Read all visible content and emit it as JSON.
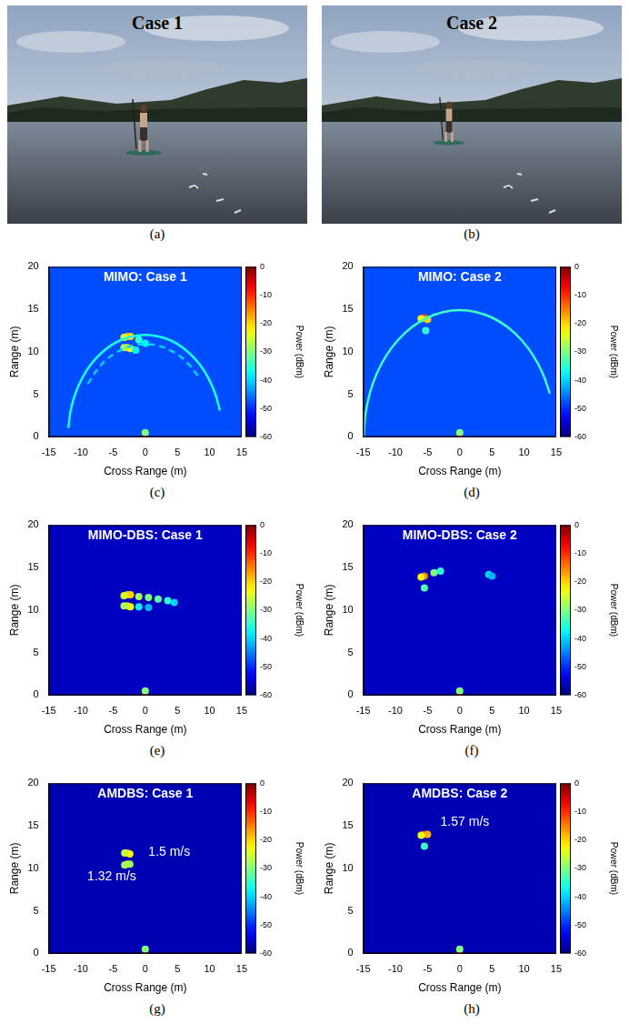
{
  "photos": [
    {
      "label": "(a)",
      "title": "Case 1"
    },
    {
      "label": "(b)",
      "title": "Case 2"
    }
  ],
  "chart_data": [
    {
      "type": "scatter",
      "label": "(c)",
      "title": "MIMO: Case 1",
      "x_label": "Cross Range (m)",
      "y_label": "Range (m)",
      "xlim": [
        -15,
        15
      ],
      "xticks": [
        -15,
        -10,
        -5,
        0,
        5,
        10,
        15
      ],
      "ylim": [
        0,
        20
      ],
      "yticks": [
        0,
        5,
        10,
        15,
        20
      ],
      "grid": false,
      "colorbar": {
        "label": "Power (dBm)",
        "range": [
          -60,
          0
        ],
        "ticks": [
          0,
          -10,
          -20,
          -30,
          -40,
          -50,
          -60
        ]
      },
      "background": -48,
      "points": {
        "x": [
          -2.8,
          -2.3,
          -3.3,
          -2.8,
          -2.3,
          -3.3,
          -1.0,
          0.0,
          -1.5,
          0.0,
          0.0
        ],
        "y": [
          11.8,
          11.8,
          11.7,
          10.5,
          10.4,
          10.5,
          11.4,
          11.0,
          10.2,
          0.0,
          0.5
        ],
        "power": [
          -18,
          -20,
          -25,
          -20,
          -24,
          -28,
          -35,
          -38,
          -38,
          -5,
          -30
        ]
      },
      "arcs": [
        {
          "x": [
            -11.95,
            -11.59,
            -10.88,
            -9.83,
            -8.49,
            -6.88,
            -5.07,
            -3.11,
            -1.05,
            1.05,
            3.11,
            5.07,
            6.88,
            8.49,
            9.83,
            10.88,
            11.59
          ],
          "y": [
            1.05,
            3.11,
            5.07,
            6.88,
            8.49,
            9.83,
            10.88,
            11.59,
            11.95,
            11.95,
            11.59,
            10.88,
            9.83,
            8.49,
            6.88,
            5.07,
            3.11
          ],
          "power": -36,
          "line_style": "solid"
        },
        {
          "x": [
            -8.93,
            -7.01,
            -4.61,
            -1.89,
            0.95,
            3.73,
            6.25,
            8.35
          ],
          "y": [
            6.25,
            8.35,
            9.88,
            10.73,
            10.86,
            10.24,
            8.93,
            7.01
          ],
          "power": -40,
          "line_style": "dashed"
        }
      ],
      "annotations": []
    },
    {
      "type": "scatter",
      "label": "(d)",
      "title": "MIMO: Case 2",
      "x_label": "Cross Range (m)",
      "y_label": "Range (m)",
      "xlim": [
        -15,
        15
      ],
      "xticks": [
        -15,
        -10,
        -5,
        0,
        5,
        10,
        15
      ],
      "ylim": [
        0,
        20
      ],
      "yticks": [
        0,
        5,
        10,
        15,
        20
      ],
      "grid": false,
      "colorbar": {
        "label": "Power (dBm)",
        "range": [
          -60,
          0
        ],
        "ticks": [
          0,
          -10,
          -20,
          -30,
          -40,
          -50,
          -60
        ]
      },
      "background": -48,
      "points": {
        "x": [
          -5.5,
          -5.0,
          -6.0,
          -5.3,
          0.0,
          0.0
        ],
        "y": [
          14.0,
          13.8,
          13.9,
          12.5,
          0.0,
          0.5
        ],
        "power": [
          -12,
          -20,
          -22,
          -35,
          -5,
          -30
        ]
      },
      "arcs": [
        {
          "x": [
            -14.9,
            -14.67,
            -14.0,
            -12.9,
            -11.41,
            -9.58,
            -7.45,
            -5.1,
            -2.59,
            0.0,
            2.59,
            5.1,
            7.45,
            9.58,
            11.41,
            12.9,
            14.0
          ],
          "y": [
            0.0,
            2.59,
            5.1,
            7.45,
            9.58,
            11.41,
            12.9,
            14.0,
            14.67,
            14.9,
            14.67,
            14.0,
            12.9,
            11.41,
            9.58,
            7.45,
            5.1
          ],
          "power": -34,
          "line_style": "solid"
        }
      ],
      "annotations": []
    },
    {
      "type": "scatter",
      "label": "(e)",
      "title": "MIMO-DBS: Case 1",
      "x_label": "Cross Range (m)",
      "y_label": "Range (m)",
      "xlim": [
        -15,
        15
      ],
      "xticks": [
        -15,
        -10,
        -5,
        0,
        5,
        10,
        15
      ],
      "ylim": [
        0,
        20
      ],
      "yticks": [
        0,
        5,
        10,
        15,
        20
      ],
      "grid": false,
      "colorbar": {
        "label": "Power (dBm)",
        "range": [
          -60,
          0
        ],
        "ticks": [
          0,
          -10,
          -20,
          -30,
          -40,
          -50,
          -60
        ]
      },
      "background": -56,
      "points": {
        "x": [
          -2.8,
          -2.3,
          -3.3,
          -2.8,
          -2.3,
          -3.3,
          -1.0,
          0.5,
          2.0,
          3.5,
          4.5,
          -1.0,
          0.5,
          0.0,
          0.0
        ],
        "y": [
          11.8,
          11.8,
          11.7,
          10.5,
          10.4,
          10.5,
          11.6,
          11.5,
          11.3,
          11.1,
          10.9,
          10.4,
          10.3,
          0.0,
          0.5
        ],
        "power": [
          -18,
          -20,
          -25,
          -20,
          -24,
          -28,
          -28,
          -30,
          -32,
          -35,
          -40,
          -38,
          -42,
          -5,
          -30
        ]
      },
      "arcs": [],
      "annotations": []
    },
    {
      "type": "scatter",
      "label": "(f)",
      "title": "MIMO-DBS: Case 2",
      "x_label": "Cross Range (m)",
      "y_label": "Range (m)",
      "xlim": [
        -15,
        15
      ],
      "xticks": [
        -15,
        -10,
        -5,
        0,
        5,
        10,
        15
      ],
      "ylim": [
        0,
        20
      ],
      "yticks": [
        0,
        5,
        10,
        15,
        20
      ],
      "grid": false,
      "colorbar": {
        "label": "Power (dBm)",
        "range": [
          -60,
          0
        ],
        "ticks": [
          0,
          -10,
          -20,
          -30,
          -40,
          -50,
          -60
        ]
      },
      "background": -56,
      "points": {
        "x": [
          -5.5,
          -6.0,
          -4.0,
          -3.0,
          -5.5,
          4.5,
          5.0,
          0.0,
          0.0
        ],
        "y": [
          14.0,
          13.9,
          14.4,
          14.6,
          12.6,
          14.2,
          14.0,
          0.0,
          0.5
        ],
        "power": [
          -15,
          -22,
          -30,
          -35,
          -33,
          -40,
          -42,
          -5,
          -30
        ]
      },
      "arcs": [],
      "annotations": []
    },
    {
      "type": "scatter",
      "label": "(g)",
      "title": "AMDBS: Case 1",
      "x_label": "Cross Range (m)",
      "y_label": "Range (m)",
      "xlim": [
        -15,
        15
      ],
      "xticks": [
        -15,
        -10,
        -5,
        0,
        5,
        10,
        15
      ],
      "ylim": [
        0,
        20
      ],
      "yticks": [
        0,
        5,
        10,
        15,
        20
      ],
      "grid": false,
      "colorbar": {
        "label": "Power (dBm)",
        "range": [
          -60,
          0
        ],
        "ticks": [
          0,
          -10,
          -20,
          -30,
          -40,
          -50,
          -60
        ]
      },
      "background": -57,
      "points": {
        "x": [
          -2.8,
          -2.4,
          -3.2,
          -2.8,
          -3.2,
          -2.4,
          0.0,
          0.0
        ],
        "y": [
          11.8,
          11.7,
          11.8,
          10.5,
          10.4,
          10.5,
          0.0,
          0.5
        ],
        "power": [
          -18,
          -22,
          -26,
          -22,
          -28,
          -28,
          -5,
          -30
        ]
      },
      "arcs": [],
      "annotations": [
        {
          "text": "1.5 m/s",
          "x": 0.5,
          "y": 11.9
        },
        {
          "text": "1.32 m/s",
          "x": -9.0,
          "y": 9.0
        }
      ]
    },
    {
      "type": "scatter",
      "label": "(h)",
      "title": "AMDBS: Case 2",
      "x_label": "Cross Range (m)",
      "y_label": "Range (m)",
      "xlim": [
        -15,
        15
      ],
      "xticks": [
        -15,
        -10,
        -5,
        0,
        5,
        10,
        15
      ],
      "ylim": [
        0,
        20
      ],
      "yticks": [
        0,
        5,
        10,
        15,
        20
      ],
      "grid": false,
      "colorbar": {
        "label": "Power (dBm)",
        "range": [
          -60,
          0
        ],
        "ticks": [
          0,
          -10,
          -20,
          -30,
          -40,
          -50,
          -60
        ]
      },
      "background": -57,
      "points": {
        "x": [
          -5.5,
          -5.0,
          -6.0,
          -5.5,
          0.0,
          0.0
        ],
        "y": [
          14.0,
          14.0,
          13.9,
          12.6,
          0.0,
          0.5
        ],
        "power": [
          -12,
          -18,
          -24,
          -34,
          -5,
          -30
        ]
      },
      "arcs": [],
      "annotations": [
        {
          "text": "1.57 m/s",
          "x": -3.0,
          "y": 15.4
        }
      ]
    }
  ]
}
